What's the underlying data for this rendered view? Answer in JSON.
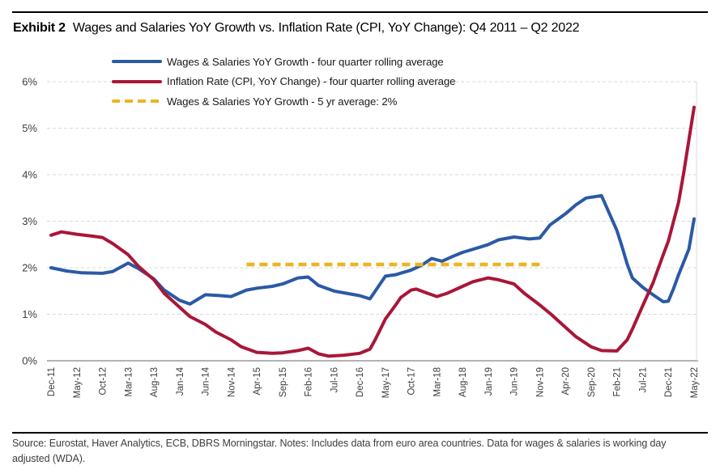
{
  "header": {
    "exhibit_label": "Exhibit 2",
    "title": "Wages and Salaries YoY Growth vs. Inflation Rate (CPI, YoY Change): Q4 2011 – Q2 2022"
  },
  "legend": {
    "items": [
      {
        "label": "Wages & Salaries YoY Growth - four quarter rolling average",
        "color": "#2b5aa5",
        "style": "solid"
      },
      {
        "label": "Inflation Rate (CPI, YoY Change) - four quarter rolling average",
        "color": "#a91638",
        "style": "solid"
      },
      {
        "label": "Wages & Salaries YoY Growth - 5 yr average: 2%",
        "color": "#edb422",
        "style": "dashed"
      }
    ]
  },
  "footer": {
    "text": "Source: Eurostat, Haver Analytics, ECB, DBRS Morningstar. Notes: Includes data from euro area countries. Data for wages & salaries is working day adjusted (WDA)."
  },
  "colors": {
    "wages_blue": "#2b5aa5",
    "inflation_red": "#a91638",
    "average_gold": "#edb422",
    "gridline": "#d9d9d9",
    "axis_line": "#9a9a9a",
    "tick_text": "#3d3d3d"
  },
  "chart_data": {
    "type": "line",
    "title": "Wages and Salaries YoY Growth vs. Inflation Rate (CPI, YoY Change): Q4 2011 – Q2 2022",
    "legend_position": "top-left",
    "grid": "horizontal-dashed",
    "x_axis": {
      "span_months": 125,
      "tick_months": [
        0,
        5,
        10,
        15,
        20,
        25,
        30,
        35,
        40,
        45,
        50,
        55,
        60,
        65,
        70,
        75,
        80,
        85,
        90,
        95,
        100,
        105,
        110,
        115,
        120,
        125
      ],
      "tick_labels": [
        "Dec-11",
        "May-12",
        "Oct-12",
        "Mar-13",
        "Aug-13",
        "Jan-14",
        "Jun-14",
        "Nov-14",
        "Apr-15",
        "Sep-15",
        "Feb-16",
        "Jul-16",
        "Dec-16",
        "May-17",
        "Oct-17",
        "Mar-18",
        "Aug-18",
        "Jan-19",
        "Jun-19",
        "Nov-19",
        "Apr-20",
        "Sep-20",
        "Feb-21",
        "Jul-21",
        "Dec-21",
        "May-22"
      ]
    },
    "y_axis": {
      "min": 0,
      "max": 6,
      "tick_labels": [
        "0%",
        "1%",
        "2%",
        "3%",
        "4%",
        "5%",
        "6%"
      ],
      "unit": "percent"
    },
    "series": [
      {
        "name": "Wages & Salaries YoY Growth - four quarter rolling average",
        "color": "#2b5aa5",
        "line_style": "solid",
        "points": [
          [
            0,
            2.0
          ],
          [
            3,
            1.93
          ],
          [
            6,
            1.89
          ],
          [
            10,
            1.88
          ],
          [
            12,
            1.92
          ],
          [
            15,
            2.1
          ],
          [
            17,
            1.98
          ],
          [
            20,
            1.76
          ],
          [
            22,
            1.52
          ],
          [
            25,
            1.3
          ],
          [
            27,
            1.22
          ],
          [
            30,
            1.42
          ],
          [
            33,
            1.4
          ],
          [
            35,
            1.38
          ],
          [
            38,
            1.52
          ],
          [
            40,
            1.56
          ],
          [
            43,
            1.6
          ],
          [
            45,
            1.65
          ],
          [
            48,
            1.78
          ],
          [
            50,
            1.8
          ],
          [
            52,
            1.62
          ],
          [
            55,
            1.5
          ],
          [
            57,
            1.46
          ],
          [
            60,
            1.4
          ],
          [
            62,
            1.33
          ],
          [
            65,
            1.82
          ],
          [
            67,
            1.85
          ],
          [
            70,
            1.95
          ],
          [
            72,
            2.05
          ],
          [
            74,
            2.2
          ],
          [
            76,
            2.14
          ],
          [
            78,
            2.24
          ],
          [
            80,
            2.33
          ],
          [
            83,
            2.43
          ],
          [
            85,
            2.5
          ],
          [
            87,
            2.6
          ],
          [
            90,
            2.66
          ],
          [
            93,
            2.62
          ],
          [
            95,
            2.64
          ],
          [
            97,
            2.92
          ],
          [
            100,
            3.16
          ],
          [
            102,
            3.35
          ],
          [
            104,
            3.5
          ],
          [
            107,
            3.55
          ],
          [
            110,
            2.8
          ],
          [
            111,
            2.45
          ],
          [
            112,
            2.08
          ],
          [
            113,
            1.78
          ],
          [
            115,
            1.58
          ],
          [
            117,
            1.42
          ],
          [
            119,
            1.27
          ],
          [
            120,
            1.28
          ],
          [
            121,
            1.55
          ],
          [
            122,
            1.85
          ],
          [
            124,
            2.4
          ],
          [
            125,
            3.05
          ]
        ]
      },
      {
        "name": "Inflation Rate (CPI, YoY Change) - four quarter rolling average",
        "color": "#a91638",
        "line_style": "solid",
        "points": [
          [
            0,
            2.7
          ],
          [
            2,
            2.77
          ],
          [
            5,
            2.72
          ],
          [
            8,
            2.68
          ],
          [
            10,
            2.65
          ],
          [
            12,
            2.52
          ],
          [
            15,
            2.28
          ],
          [
            17,
            2.03
          ],
          [
            20,
            1.74
          ],
          [
            22,
            1.45
          ],
          [
            25,
            1.15
          ],
          [
            27,
            0.95
          ],
          [
            30,
            0.78
          ],
          [
            32,
            0.62
          ],
          [
            35,
            0.45
          ],
          [
            37,
            0.3
          ],
          [
            40,
            0.18
          ],
          [
            43,
            0.16
          ],
          [
            45,
            0.17
          ],
          [
            48,
            0.22
          ],
          [
            50,
            0.27
          ],
          [
            52,
            0.15
          ],
          [
            54,
            0.1
          ],
          [
            57,
            0.12
          ],
          [
            60,
            0.16
          ],
          [
            62,
            0.25
          ],
          [
            63,
            0.45
          ],
          [
            65,
            0.9
          ],
          [
            67,
            1.2
          ],
          [
            68,
            1.36
          ],
          [
            70,
            1.52
          ],
          [
            71,
            1.54
          ],
          [
            73,
            1.46
          ],
          [
            75,
            1.38
          ],
          [
            77,
            1.45
          ],
          [
            80,
            1.6
          ],
          [
            82,
            1.7
          ],
          [
            85,
            1.78
          ],
          [
            87,
            1.74
          ],
          [
            90,
            1.65
          ],
          [
            92,
            1.45
          ],
          [
            95,
            1.2
          ],
          [
            97,
            1.02
          ],
          [
            100,
            0.72
          ],
          [
            102,
            0.52
          ],
          [
            105,
            0.3
          ],
          [
            107,
            0.22
          ],
          [
            110,
            0.21
          ],
          [
            112,
            0.45
          ],
          [
            113,
            0.68
          ],
          [
            115,
            1.18
          ],
          [
            117,
            1.67
          ],
          [
            119,
            2.28
          ],
          [
            120,
            2.57
          ],
          [
            122,
            3.41
          ],
          [
            123,
            4.05
          ],
          [
            124,
            4.75
          ],
          [
            125,
            5.45
          ]
        ]
      },
      {
        "name": "Wages & Salaries YoY Growth - 5 yr average: 2%",
        "color": "#edb422",
        "line_style": "dashed",
        "points": [
          [
            38,
            2.07
          ],
          [
            95,
            2.07
          ]
        ]
      }
    ]
  }
}
